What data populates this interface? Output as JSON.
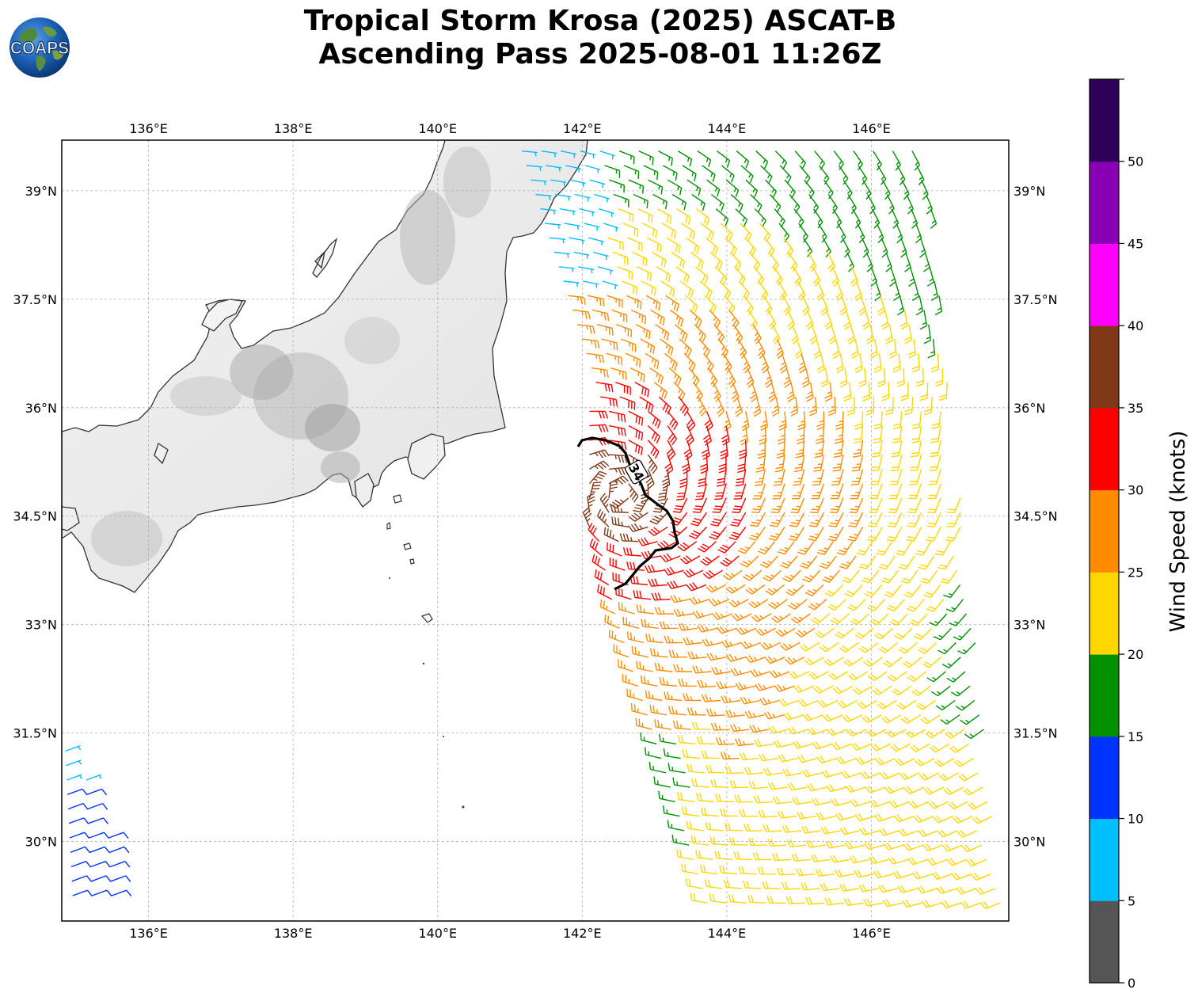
{
  "title": {
    "line1": "Tropical Storm Krosa (2025) ASCAT-B",
    "line2": "Ascending Pass 2025-08-01 11:26Z"
  },
  "logo": {
    "text": "COAPS"
  },
  "map": {
    "lon_range": [
      134.8,
      147.9
    ],
    "lat_range": [
      28.9,
      39.7
    ],
    "lon_ticks": [
      136,
      138,
      140,
      142,
      144,
      146
    ],
    "lat_ticks": [
      39,
      37.5,
      36,
      34.5,
      33,
      31.5,
      30
    ],
    "lon_tick_labels": [
      "136°E",
      "138°E",
      "140°E",
      "142°E",
      "144°E",
      "146°E"
    ],
    "lat_tick_labels": [
      "39°N",
      "37.5°N",
      "36°N",
      "34.5°N",
      "33°N",
      "31.5°N",
      "30°N"
    ],
    "gridlines": true,
    "storm_center": {
      "lon": 142.55,
      "lat": 34.8
    },
    "contour_label": "34"
  },
  "colorbar": {
    "title": "Wind Speed (knots)",
    "ticks": [
      "0",
      "5",
      "10",
      "15",
      "20",
      "25",
      "30",
      "35",
      "40",
      "45",
      "50"
    ],
    "bins": [
      {
        "min": 0,
        "max": 5,
        "color": "#555555"
      },
      {
        "min": 5,
        "max": 10,
        "color": "#00bfff"
      },
      {
        "min": 10,
        "max": 15,
        "color": "#0033ff"
      },
      {
        "min": 15,
        "max": 20,
        "color": "#009000"
      },
      {
        "min": 20,
        "max": 25,
        "color": "#ffd700"
      },
      {
        "min": 25,
        "max": 30,
        "color": "#ff8c00"
      },
      {
        "min": 30,
        "max": 35,
        "color": "#ff0000"
      },
      {
        "min": 35,
        "max": 40,
        "color": "#803818"
      },
      {
        "min": 40,
        "max": 45,
        "color": "#ff00ff"
      },
      {
        "min": 45,
        "max": 50,
        "color": "#8a00b5"
      },
      {
        "min": 50,
        "max": 55,
        "color": "#2e0057"
      }
    ]
  }
}
